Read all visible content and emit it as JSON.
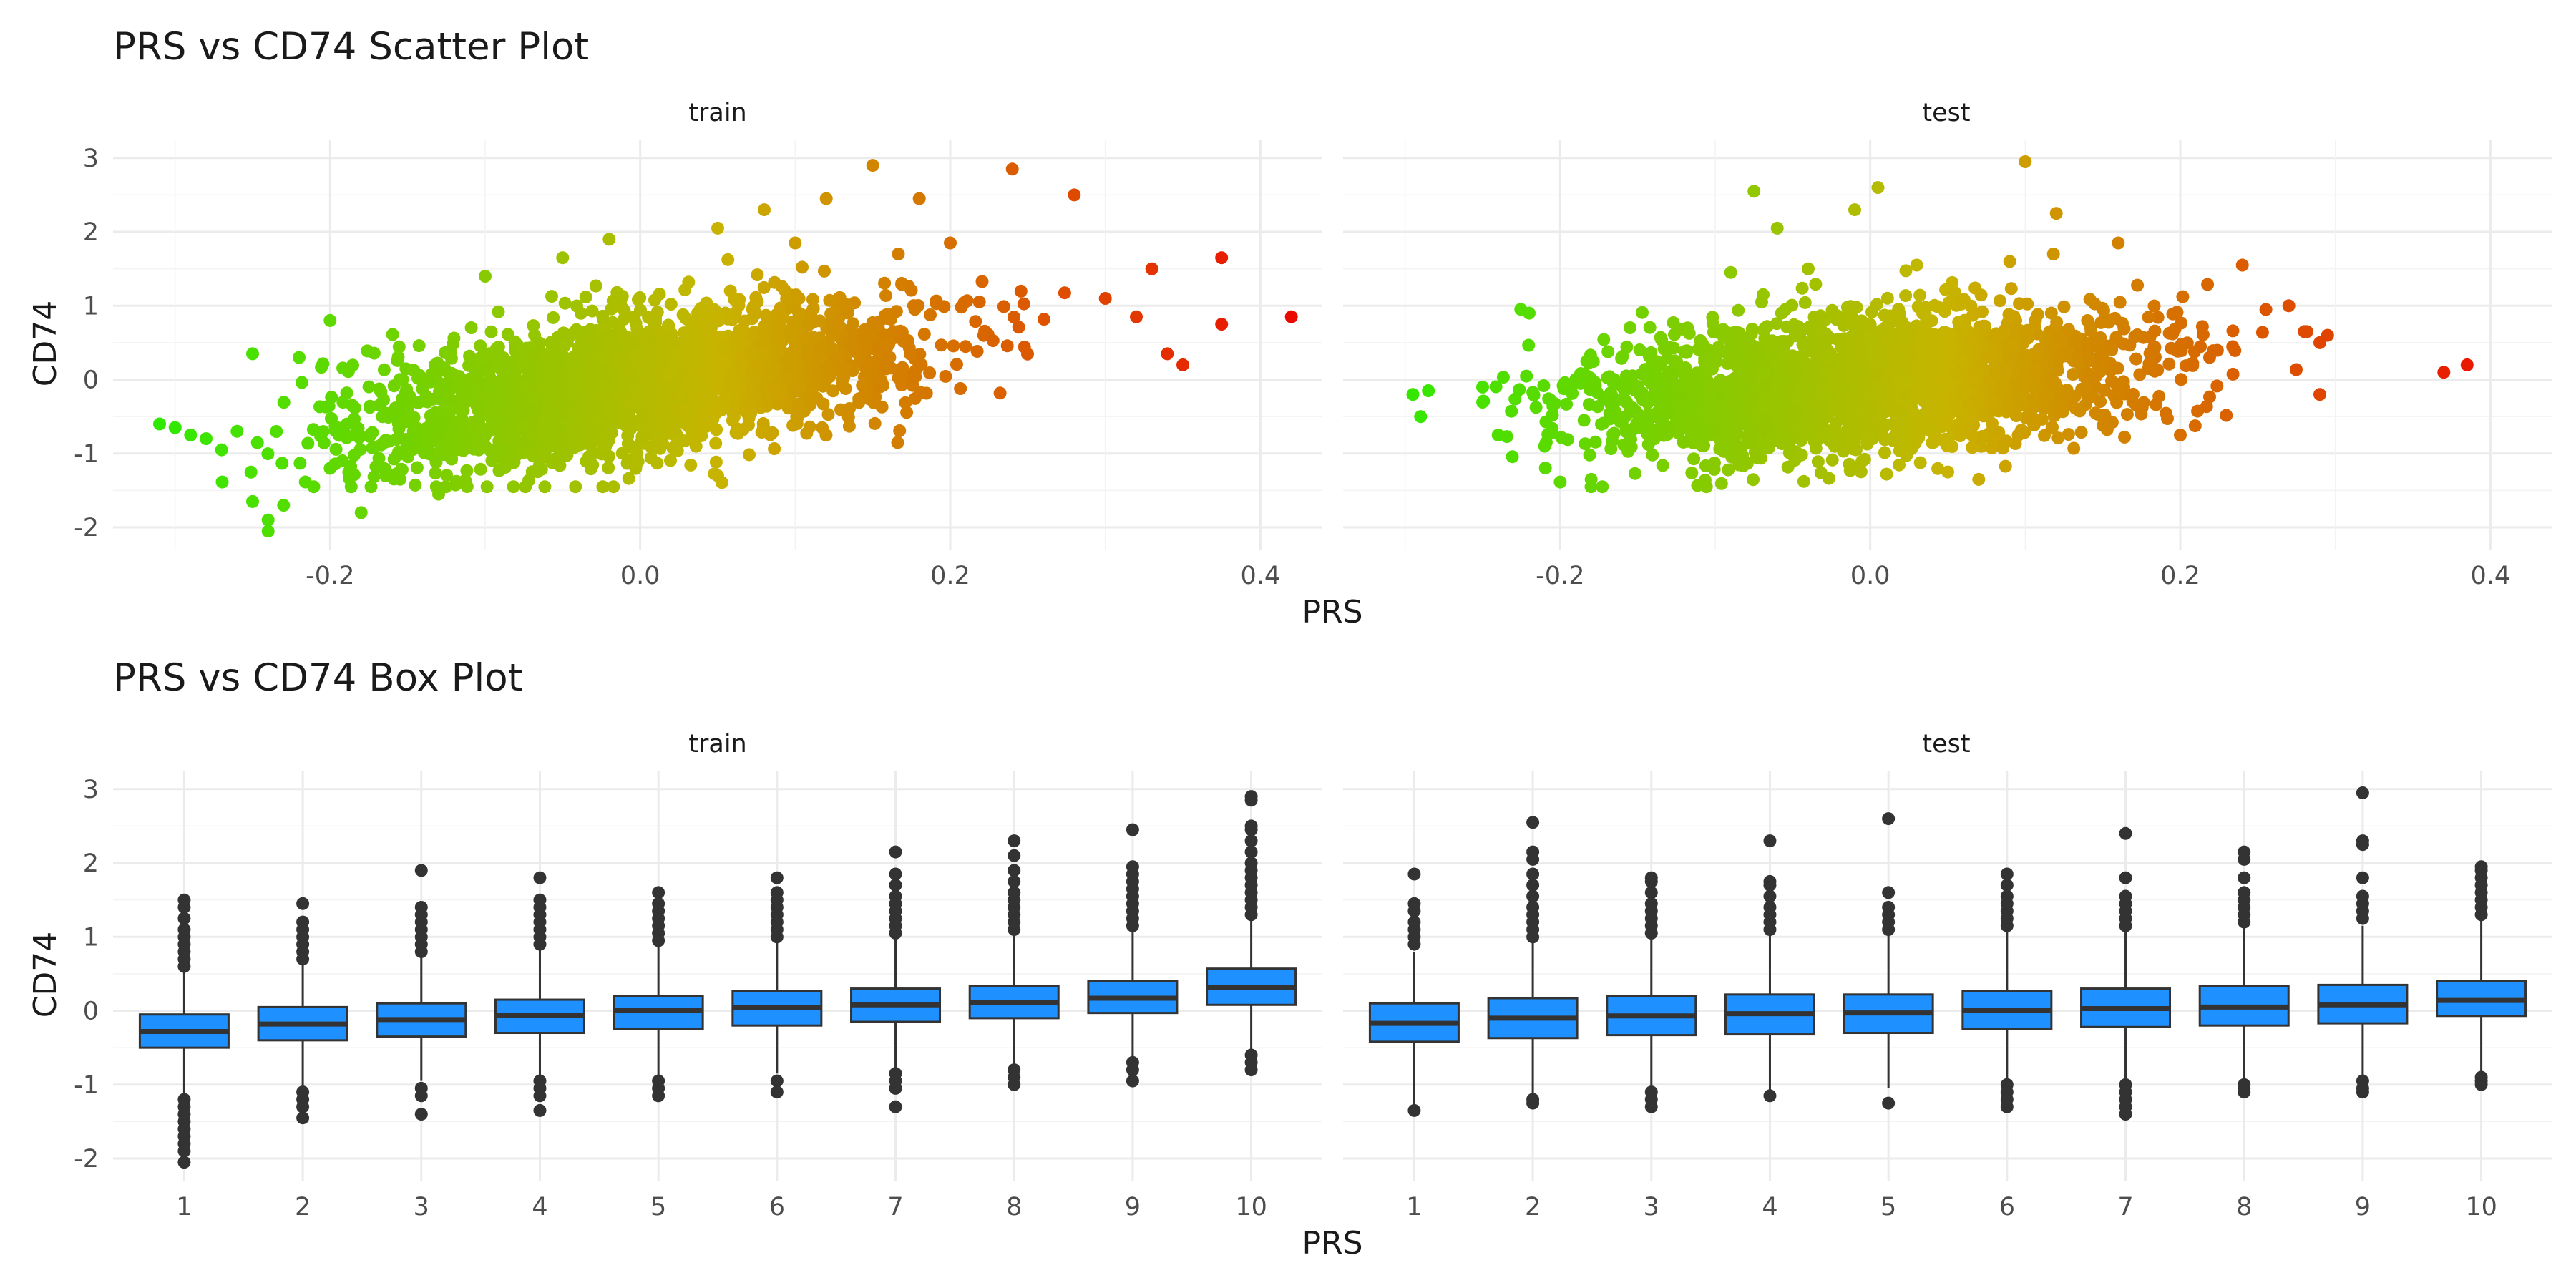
{
  "chart_data": [
    {
      "type": "scatter",
      "title": "PRS vs CD74 Scatter Plot",
      "xlabel": "PRS",
      "ylabel": "CD74",
      "facets": [
        "train",
        "test"
      ],
      "xlim": [
        -0.34,
        0.44
      ],
      "ylim": [
        -2.3,
        3.25
      ],
      "x_ticks": [
        -0.2,
        0.0,
        0.2,
        0.4
      ],
      "x_tick_labels": [
        "-0.2",
        "0.0",
        "0.2",
        "0.4"
      ],
      "y_ticks": [
        -2,
        -1,
        0,
        1,
        2,
        3
      ],
      "y_tick_labels": [
        "-2",
        "-1",
        "0",
        "1",
        "2",
        "3"
      ],
      "color_scale": {
        "low": "#22ee00",
        "mid": "#c8b400",
        "high": "#ee0000"
      },
      "grid": true,
      "series": [
        {
          "facet": "train",
          "trend": {
            "slope": 3.2,
            "intercept": -0.05,
            "spread": 0.45
          },
          "points": [
            [
              -0.31,
              -0.6
            ],
            [
              -0.3,
              -0.65
            ],
            [
              -0.29,
              -0.75
            ],
            [
              -0.28,
              -0.8
            ],
            [
              -0.27,
              -0.95
            ],
            [
              -0.26,
              -0.7
            ],
            [
              -0.25,
              0.35
            ],
            [
              -0.25,
              -1.65
            ],
            [
              -0.24,
              -2.05
            ],
            [
              -0.24,
              -1.9
            ],
            [
              -0.23,
              -1.7
            ],
            [
              -0.22,
              0.3
            ],
            [
              -0.2,
              0.8
            ],
            [
              -0.18,
              -1.8
            ],
            [
              -0.13,
              -1.55
            ],
            [
              -0.1,
              1.4
            ],
            [
              -0.05,
              1.65
            ],
            [
              -0.02,
              1.9
            ],
            [
              0.05,
              -1.3
            ],
            [
              0.05,
              2.05
            ],
            [
              0.08,
              2.3
            ],
            [
              0.1,
              1.85
            ],
            [
              0.12,
              2.45
            ],
            [
              0.15,
              2.9
            ],
            [
              0.18,
              2.45
            ],
            [
              0.2,
              1.85
            ],
            [
              0.24,
              2.85
            ],
            [
              0.28,
              2.5
            ],
            [
              0.3,
              1.1
            ],
            [
              0.32,
              0.85
            ],
            [
              0.33,
              1.5
            ],
            [
              0.34,
              0.35
            ],
            [
              0.35,
              0.2
            ],
            [
              0.375,
              1.65
            ],
            [
              0.375,
              0.75
            ],
            [
              0.42,
              0.85
            ]
          ]
        },
        {
          "facet": "test",
          "trend": {
            "slope": 1.5,
            "intercept": -0.05,
            "spread": 0.45
          },
          "points": [
            [
              -0.295,
              -0.2
            ],
            [
              -0.29,
              -0.5
            ],
            [
              -0.285,
              -0.15
            ],
            [
              -0.25,
              -0.1
            ],
            [
              -0.24,
              -0.75
            ],
            [
              -0.22,
              0.9
            ],
            [
              -0.21,
              -0.9
            ],
            [
              -0.18,
              -1.35
            ],
            [
              -0.09,
              1.45
            ],
            [
              -0.075,
              2.55
            ],
            [
              -0.07,
              1.05
            ],
            [
              -0.06,
              2.05
            ],
            [
              -0.04,
              1.5
            ],
            [
              -0.01,
              2.3
            ],
            [
              0.005,
              2.6
            ],
            [
              0.03,
              1.55
            ],
            [
              0.05,
              -1.25
            ],
            [
              0.07,
              -1.35
            ],
            [
              0.1,
              2.95
            ],
            [
              0.09,
              1.6
            ],
            [
              0.12,
              2.25
            ],
            [
              0.16,
              1.85
            ],
            [
              0.2,
              -0.75
            ],
            [
              0.24,
              1.55
            ],
            [
              0.27,
              1.0
            ],
            [
              0.28,
              0.65
            ],
            [
              0.29,
              -0.2
            ],
            [
              0.29,
              0.5
            ],
            [
              0.295,
              0.6
            ],
            [
              0.37,
              0.1
            ],
            [
              0.385,
              0.2
            ]
          ]
        }
      ]
    },
    {
      "type": "box",
      "title": "PRS vs CD74 Box Plot",
      "xlabel": "PRS",
      "ylabel": "CD74",
      "facets": [
        "train",
        "test"
      ],
      "categories": [
        "1",
        "2",
        "3",
        "4",
        "5",
        "6",
        "7",
        "8",
        "9",
        "10"
      ],
      "ylim": [
        -2.3,
        3.25
      ],
      "y_ticks": [
        -2,
        -1,
        0,
        1,
        2,
        3
      ],
      "y_tick_labels": [
        "-2",
        "-1",
        "0",
        "1",
        "2",
        "3"
      ],
      "box_color": "#1e90ff",
      "grid": true,
      "series": [
        {
          "facet": "train",
          "boxes": [
            {
              "q1": -0.5,
              "median": -0.28,
              "q3": -0.05,
              "wlo": -1.15,
              "whi": 0.55,
              "outliers": [
                0.6,
                0.7,
                0.8,
                0.9,
                1.0,
                1.1,
                1.25,
                1.4,
                1.5,
                -1.2,
                -1.3,
                -1.4,
                -1.5,
                -1.6,
                -1.7,
                -1.8,
                -1.9,
                -2.05
              ]
            },
            {
              "q1": -0.4,
              "median": -0.18,
              "q3": 0.05,
              "wlo": -1.05,
              "whi": 0.65,
              "outliers": [
                0.7,
                0.8,
                0.9,
                1.0,
                1.1,
                1.2,
                1.45,
                -1.1,
                -1.2,
                -1.3,
                -1.45
              ]
            },
            {
              "q1": -0.35,
              "median": -0.12,
              "q3": 0.1,
              "wlo": -0.95,
              "whi": 0.75,
              "outliers": [
                0.8,
                0.9,
                1.0,
                1.1,
                1.2,
                1.3,
                1.4,
                1.9,
                -1.05,
                -1.15,
                -1.4
              ]
            },
            {
              "q1": -0.3,
              "median": -0.06,
              "q3": 0.15,
              "wlo": -0.9,
              "whi": 0.82,
              "outliers": [
                0.9,
                1.0,
                1.1,
                1.2,
                1.3,
                1.4,
                1.5,
                1.8,
                -0.95,
                -1.05,
                -1.15,
                -1.35
              ]
            },
            {
              "q1": -0.25,
              "median": 0.0,
              "q3": 0.2,
              "wlo": -0.88,
              "whi": 0.88,
              "outliers": [
                0.95,
                1.05,
                1.15,
                1.25,
                1.35,
                1.45,
                1.6,
                -0.95,
                -1.05,
                -1.15
              ]
            },
            {
              "q1": -0.2,
              "median": 0.04,
              "q3": 0.27,
              "wlo": -0.85,
              "whi": 0.95,
              "outliers": [
                1.0,
                1.1,
                1.2,
                1.3,
                1.4,
                1.5,
                1.6,
                1.8,
                -0.95,
                -1.1
              ]
            },
            {
              "q1": -0.15,
              "median": 0.08,
              "q3": 0.3,
              "wlo": -0.8,
              "whi": 1.0,
              "outliers": [
                1.05,
                1.15,
                1.25,
                1.35,
                1.45,
                1.55,
                1.7,
                1.85,
                2.15,
                -0.85,
                -0.95,
                -1.05,
                -1.3
              ]
            },
            {
              "q1": -0.1,
              "median": 0.11,
              "q3": 0.33,
              "wlo": -0.75,
              "whi": 1.05,
              "outliers": [
                1.1,
                1.2,
                1.3,
                1.4,
                1.5,
                1.6,
                1.75,
                1.9,
                2.1,
                2.3,
                -0.8,
                -0.9,
                -1.0
              ]
            },
            {
              "q1": -0.03,
              "median": 0.17,
              "q3": 0.4,
              "wlo": -0.65,
              "whi": 1.1,
              "outliers": [
                1.15,
                1.25,
                1.35,
                1.45,
                1.55,
                1.65,
                1.75,
                1.85,
                1.95,
                2.45,
                -0.7,
                -0.8,
                -0.95
              ]
            },
            {
              "q1": 0.08,
              "median": 0.32,
              "q3": 0.57,
              "wlo": -0.55,
              "whi": 1.25,
              "outliers": [
                1.3,
                1.4,
                1.5,
                1.6,
                1.7,
                1.8,
                1.9,
                2.0,
                2.15,
                2.3,
                2.45,
                2.5,
                2.85,
                2.9,
                -0.6,
                -0.7,
                -0.8
              ]
            }
          ]
        },
        {
          "facet": "test",
          "boxes": [
            {
              "q1": -0.42,
              "median": -0.17,
              "q3": 0.1,
              "wlo": -1.3,
              "whi": 0.8,
              "outliers": [
                0.9,
                1.0,
                1.1,
                1.2,
                1.35,
                1.45,
                1.85,
                -1.35
              ]
            },
            {
              "q1": -0.37,
              "median": -0.1,
              "q3": 0.17,
              "wlo": -1.15,
              "whi": 0.95,
              "outliers": [
                1.0,
                1.1,
                1.2,
                1.3,
                1.4,
                1.55,
                1.7,
                1.85,
                2.05,
                2.15,
                2.55,
                -1.2,
                -1.25
              ]
            },
            {
              "q1": -0.33,
              "median": -0.07,
              "q3": 0.2,
              "wlo": -1.05,
              "whi": 1.0,
              "outliers": [
                1.05,
                1.15,
                1.25,
                1.35,
                1.45,
                1.6,
                1.75,
                1.8,
                -1.1,
                -1.2,
                -1.3
              ]
            },
            {
              "q1": -0.32,
              "median": -0.04,
              "q3": 0.22,
              "wlo": -1.1,
              "whi": 1.05,
              "outliers": [
                1.1,
                1.2,
                1.3,
                1.4,
                1.55,
                1.7,
                1.75,
                2.3,
                -1.15
              ]
            },
            {
              "q1": -0.3,
              "median": -0.03,
              "q3": 0.22,
              "wlo": -1.05,
              "whi": 1.05,
              "outliers": [
                1.1,
                1.2,
                1.3,
                1.4,
                1.6,
                2.6,
                -1.25
              ]
            },
            {
              "q1": -0.25,
              "median": 0.01,
              "q3": 0.27,
              "wlo": -0.95,
              "whi": 1.1,
              "outliers": [
                1.15,
                1.25,
                1.35,
                1.45,
                1.55,
                1.7,
                1.85,
                -1.0,
                -1.1,
                -1.2,
                -1.3
              ]
            },
            {
              "q1": -0.22,
              "median": 0.03,
              "q3": 0.3,
              "wlo": -0.95,
              "whi": 1.1,
              "outliers": [
                1.15,
                1.25,
                1.35,
                1.45,
                1.55,
                1.8,
                2.4,
                -1.0,
                -1.1,
                -1.2,
                -1.3,
                -1.4
              ]
            },
            {
              "q1": -0.2,
              "median": 0.05,
              "q3": 0.33,
              "wlo": -0.95,
              "whi": 1.15,
              "outliers": [
                1.2,
                1.3,
                1.4,
                1.5,
                1.6,
                1.8,
                2.05,
                2.15,
                -1.0,
                -1.05,
                -1.1
              ]
            },
            {
              "q1": -0.17,
              "median": 0.08,
              "q3": 0.35,
              "wlo": -0.9,
              "whi": 1.15,
              "outliers": [
                1.25,
                1.35,
                1.45,
                1.55,
                1.8,
                2.25,
                2.3,
                2.95,
                -0.95,
                -1.05,
                -1.1
              ]
            },
            {
              "q1": -0.07,
              "median": 0.14,
              "q3": 0.4,
              "wlo": -0.85,
              "whi": 1.25,
              "outliers": [
                1.3,
                1.4,
                1.5,
                1.6,
                1.7,
                1.8,
                1.9,
                1.95,
                -0.9,
                -0.95,
                -1.0
              ]
            }
          ]
        }
      ]
    }
  ]
}
